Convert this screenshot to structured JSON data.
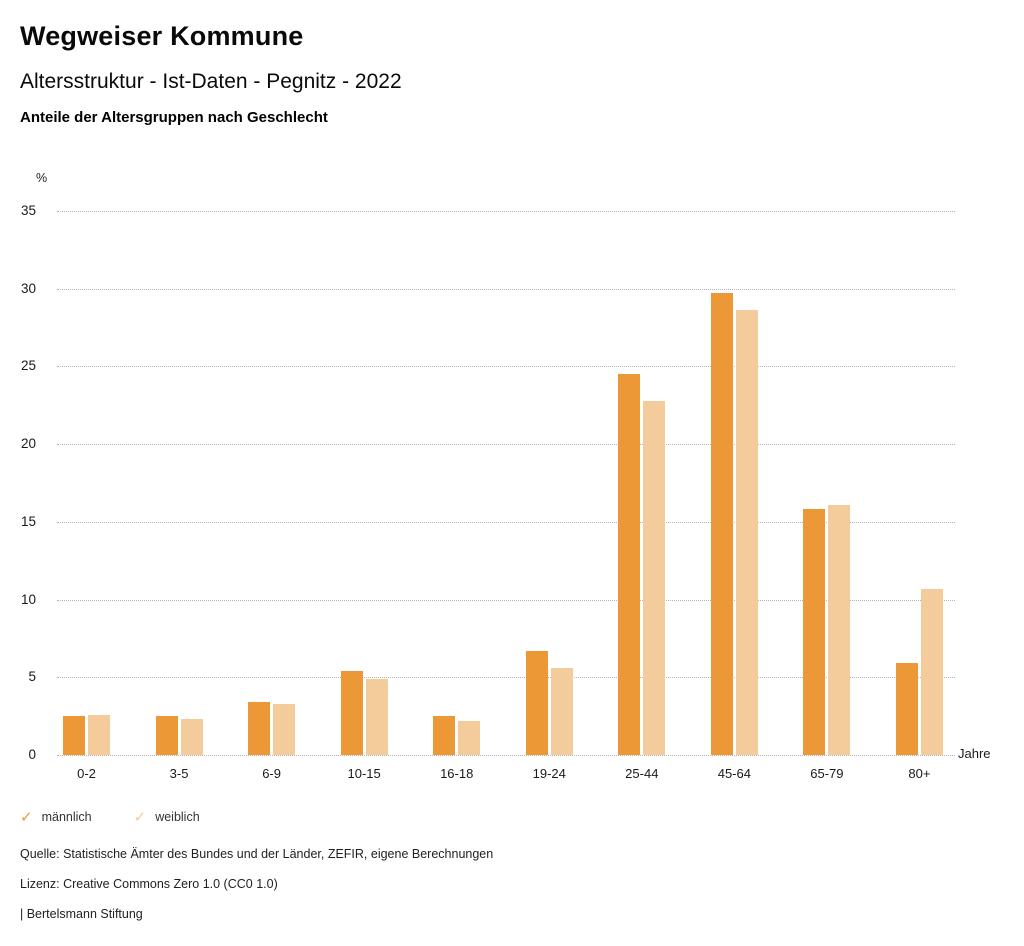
{
  "header": {
    "title": "Wegweiser Kommune",
    "subtitle": "Altersstruktur - Ist-Daten - Pegnitz - 2022",
    "caption": "Anteile der Altersgruppen nach Geschlecht"
  },
  "chart_data": {
    "type": "bar",
    "title": "Anteile der Altersgruppen nach Geschlecht",
    "unit_label": "%",
    "xlabel": "Jahre",
    "ylabel": "%",
    "categories": [
      "0-2",
      "3-5",
      "6-9",
      "10-15",
      "16-18",
      "19-24",
      "25-44",
      "45-64",
      "65-79",
      "80+"
    ],
    "series": [
      {
        "id": "maennlich",
        "name": "männlich",
        "color": "#EC9836",
        "values": [
          2.5,
          2.5,
          3.4,
          5.4,
          2.5,
          6.7,
          24.5,
          29.7,
          15.8,
          5.9
        ]
      },
      {
        "id": "weiblich",
        "name": "weiblich",
        "color": "#F4CB9A",
        "values": [
          2.6,
          2.3,
          3.3,
          4.9,
          2.2,
          5.6,
          22.8,
          28.6,
          16.1,
          10.7
        ]
      }
    ],
    "ylim": [
      0,
      35
    ],
    "ytick_step": 5,
    "grid": "dotted-horizontal",
    "legend_position": "bottom-left"
  },
  "legend": {
    "items": [
      {
        "id": "maennlich",
        "icon": "check-icon",
        "label": "männlich",
        "color": "#EC9836"
      },
      {
        "id": "weiblich",
        "icon": "check-icon",
        "label": "weiblich",
        "color": "#F4CB9A"
      }
    ]
  },
  "footer": {
    "source": "Quelle: Statistische Ämter des Bundes und der Länder, ZEFIR, eigene Berechnungen",
    "license": "Lizenz: Creative Commons Zero 1.0 (CC0 1.0)",
    "attribution": "| Bertelsmann Stiftung"
  }
}
